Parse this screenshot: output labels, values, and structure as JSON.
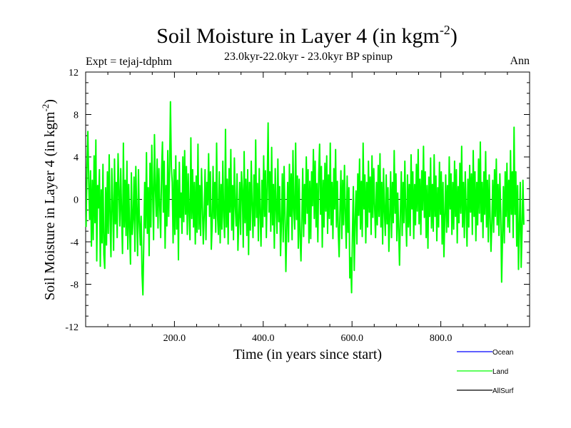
{
  "chart_data": {
    "type": "line",
    "title": "Soil Moisture in Layer 4 (in kgm",
    "title_sup": "-2",
    "title_end": ")",
    "subtitle": "23.0kyr-22.0kyr - 23.0kyr BP spinup",
    "expt_label": "Expt = tejaj-tdphm",
    "season_label": "Ann",
    "xlabel": "Time (in years since start)",
    "ylabel": "Soil Moisture in Layer 4 (in kgm",
    "ylabel_sup": "-2",
    "ylabel_end": ")",
    "xlim": [
      0,
      1000
    ],
    "ylim": [
      -12,
      12
    ],
    "xticks": [
      200,
      400,
      600,
      800
    ],
    "xtick_labels": [
      "200.0",
      "400.0",
      "600.0",
      "800.0"
    ],
    "yticks": [
      -12,
      -8,
      -4,
      0,
      4,
      8,
      12
    ],
    "ytick_labels": [
      "-12",
      "-8",
      "-4",
      "0",
      "4",
      "8",
      "12"
    ],
    "zero_line": true,
    "legend": [
      {
        "name": "Ocean",
        "color": "#0000ff"
      },
      {
        "name": "Land",
        "color": "#00ff00"
      },
      {
        "name": "AllSurf",
        "color": "#000000"
      }
    ],
    "series": [
      {
        "name": "Land",
        "color": "#00ff00",
        "x_start": 1,
        "x_step": 2,
        "values": [
          -2.6,
          3.2,
          6.4,
          1.5,
          -1.9,
          2.7,
          -4.4,
          1.8,
          -3.8,
          4.1,
          -2.2,
          5.6,
          -5.8,
          1.3,
          -0.8,
          2.8,
          -6.3,
          0.9,
          -4.1,
          3.3,
          -5.2,
          -6.5,
          1.1,
          -4.3,
          2.6,
          -3.2,
          4.2,
          -1.8,
          -5.4,
          2.9,
          -0.6,
          -4.8,
          3.8,
          -2.3,
          1.6,
          -3.6,
          4.3,
          0.8,
          -2.5,
          2.9,
          -1.4,
          -5.1,
          5.3,
          -2.6,
          1.8,
          -3.4,
          3.6,
          -4.7,
          1.4,
          -2.8,
          -6.1,
          2.5,
          -3.3,
          -1.8,
          2.1,
          -4.9,
          3.1,
          -1.1,
          -5.3,
          2.8,
          -2.1,
          -4.3,
          -1.6,
          -7.0,
          -9.0,
          -3.8,
          1.6,
          -2.7,
          4.4,
          -3.2,
          1.1,
          -5.3,
          3.4,
          -2.6,
          5.1,
          0.6,
          -3.8,
          6.1,
          1.1,
          -1.6,
          3.8,
          -2.7,
          2.9,
          -0.6,
          -3.6,
          2.6,
          5.4,
          -1.2,
          3.6,
          -4.6,
          1.3,
          -2.5,
          4.6,
          -1.6,
          2.6,
          9.2,
          3.1,
          1.6,
          -4.1,
          2.8,
          -3.3,
          4.1,
          -2.8,
          1.8,
          -5.7,
          3.5,
          -1.7,
          0.6,
          -3.2,
          4.0,
          -2.1,
          4.6,
          -1.4,
          3.1,
          -3.3,
          2.4,
          -1.3,
          -3.8,
          5.8,
          -1.8,
          2.8,
          -2.6,
          1.6,
          -4.2,
          2.2,
          -3.1,
          5.2,
          -2.8,
          1.3,
          -3.4,
          2.9,
          -0.6,
          -4.2,
          -1.5,
          2.8,
          -3.8,
          1.6,
          -0.5,
          4.3,
          -1.6,
          2.6,
          -4.7,
          -2.5,
          3.1,
          -1.8,
          1.6,
          -3.1,
          5.3,
          -1.5,
          -3.3,
          2.6,
          -4.1,
          1.4,
          -2.8,
          3.6,
          -1.6,
          -3.6,
          6.6,
          -2.6,
          1.9,
          -4.2,
          2.9,
          -1.2,
          4.7,
          -2.9,
          1.3,
          -3.8,
          3.9,
          -0.6,
          -2.5,
          2.4,
          -4.8,
          -2.0,
          1.6,
          -3.3,
          2.6,
          0.8,
          -4.5,
          4.5,
          -2.2,
          1.9,
          -3.4,
          2.8,
          -5.2,
          1.6,
          -2.9,
          3.6,
          -0.6,
          -3.6,
          2.3,
          -2.5,
          5.6,
          -1.7,
          1.5,
          -3.9,
          2.9,
          -1.3,
          -4.4,
          1.8,
          -2.6,
          4.1,
          -1.6,
          2.7,
          -3.6,
          1.3,
          7.2,
          -1.2,
          2.6,
          -3.0,
          4.9,
          -2.4,
          1.4,
          -4.6,
          2.9,
          -0.8,
          -3.2,
          3.8,
          -2.1,
          1.2,
          -5.3,
          -2.2,
          2.4,
          -4.0,
          3.1,
          -1.2,
          -6.8,
          -2.6,
          1.6,
          -4.0,
          3.3,
          -1.6,
          2.4,
          -3.8,
          4.6,
          -1.0,
          -2.8,
          5.3,
          -1.9,
          2.2,
          -4.6,
          1.9,
          -3.4,
          -5.8,
          -1.9,
          2.9,
          -3.5,
          1.4,
          -2.3,
          4.0,
          -1.3,
          2.8,
          -4.1,
          1.7,
          -3.7,
          2.6,
          -0.6,
          4.7,
          -1.8,
          3.6,
          -2.6,
          1.5,
          -4.0,
          2.4,
          5.2,
          -1.4,
          3.1,
          -4.5,
          1.8,
          -2.6,
          3.4,
          -1.1,
          4.1,
          -3.2,
          2.3,
          -1.8,
          5.3,
          -2.4,
          1.6,
          -3.7,
          2.9,
          -0.9,
          4.7,
          -2.6,
          1.7,
          -3.0,
          -5.4,
          -0.8,
          2.7,
          -3.7,
          1.8,
          -2.4,
          3.2,
          -1.3,
          -4.6,
          2.2,
          -3.1,
          1.1,
          -7.4,
          -5.5,
          -8.8,
          -3.1,
          1.2,
          -6.7,
          -2.1,
          0.8,
          -4.2,
          2.4,
          -1.5,
          3.8,
          -2.8,
          1.7,
          -3.5,
          5.3,
          -0.9,
          2.3,
          -4.1,
          1.6,
          -2.6,
          3.6,
          -1.2,
          2.1,
          -3.3,
          4.1,
          -1.7,
          2.9,
          -0.8,
          -3.6,
          1.6,
          -2.4,
          3.2,
          -1.6,
          4.3,
          -2.6,
          1.6,
          -4.2,
          2.9,
          -1.1,
          -3.4,
          2.3,
          -2.3,
          1.1,
          -4.9,
          -1.6,
          2.6,
          -3.6,
          1.6,
          -2.2,
          4.6,
          -1.3,
          2.4,
          -3.9,
          0.6,
          -2.8,
          -6.2,
          -1.3,
          2.6,
          -3.4,
          1.6,
          -2.2,
          3.6,
          -1.4,
          -4.4,
          2.3,
          -2.6,
          1.4,
          -3.4,
          4.2,
          -0.9,
          2.6,
          -3.7,
          1.4,
          -2.4,
          3.3,
          -1.1,
          4.7,
          -2.3,
          1.9,
          -3.3,
          2.7,
          -1.0,
          5.0,
          -1.7,
          2.6,
          -3.6,
          1.3,
          -4.6,
          2.1,
          -1.6,
          3.9,
          -2.7,
          1.4,
          -3.0,
          4.2,
          -1.6,
          2.2,
          -3.9,
          1.1,
          -2.6,
          3.5,
          -1.4,
          2.6,
          -4.2,
          1.6,
          -5.4,
          -1.6,
          2.3,
          -3.1,
          1.3,
          -2.6,
          4.0,
          -0.9,
          2.4,
          -3.3,
          1.6,
          -2.8,
          3.6,
          -1.6,
          2.8,
          -4.1,
          1.2,
          -2.2,
          3.4,
          -1.3,
          5.0,
          -2.6,
          1.6,
          -3.6,
          2.6,
          -0.8,
          -4.4,
          1.9,
          -2.6,
          3.2,
          -1.2,
          2.4,
          -3.3,
          4.6,
          -1.6,
          2.6,
          -3.9,
          1.6,
          -2.4,
          3.8,
          -1.3,
          5.4,
          -2.1,
          1.6,
          -3.6,
          2.6,
          -1.4,
          4.5,
          -2.6,
          1.8,
          -4.0,
          2.3,
          -1.6,
          -4.9,
          -2.2,
          1.8,
          -3.1,
          2.8,
          -1.6,
          3.8,
          -2.4,
          1.4,
          -3.4,
          2.4,
          -1.1,
          -7.8,
          -3.6,
          1.2,
          -4.1,
          2.6,
          -1.6,
          3.4,
          -2.6,
          1.8,
          -3.1,
          4.6,
          -1.4,
          2.6,
          -3.6,
          6.8,
          -1.4,
          2.6,
          -4.4,
          1.3,
          -6.6,
          -2.6,
          1.6,
          -6.4,
          -3.0,
          1.8,
          -2.4
        ]
      }
    ]
  }
}
